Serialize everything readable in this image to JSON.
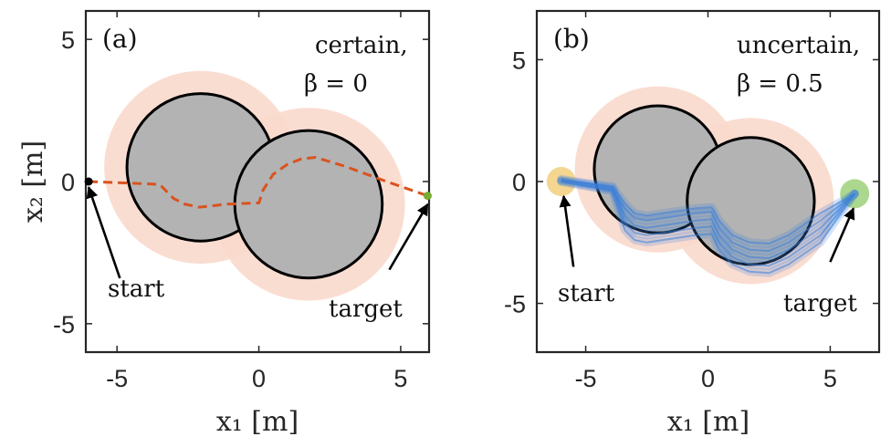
{
  "chart_data": [
    {
      "panel_label": "(a)",
      "type": "line",
      "annotation": {
        "line1": "certain,",
        "line2": "β = 0"
      },
      "xlabel": "x₁ [m]",
      "ylabel": "x₂ [m]",
      "xlim": [
        -6.1,
        6
      ],
      "ylim": [
        -6,
        6
      ],
      "xticks": [
        -5,
        0,
        5
      ],
      "xtick_labels": [
        "-5",
        "0",
        "5"
      ],
      "yticks": [
        -5,
        0,
        5
      ],
      "ytick_labels": [
        "-5",
        "0",
        "5"
      ],
      "obstacles": [
        {
          "name": "obstacle-1",
          "cx": -2.05,
          "cy": 0.5,
          "r": 2.6,
          "margin_r": 3.4
        },
        {
          "name": "obstacle-2",
          "cx": 1.75,
          "cy": -0.8,
          "r": 2.6,
          "margin_r": 3.4
        }
      ],
      "start": {
        "label": "start",
        "x": -6.0,
        "y": 0.0
      },
      "target": {
        "label": "target",
        "x": 5.95,
        "y": -0.5
      },
      "trajectory": {
        "style": "dashed",
        "color": "#d9531e",
        "x": [
          -6.0,
          -3.5,
          -3.3,
          -3.0,
          -2.6,
          -2.1,
          -1.6,
          -1.2,
          0.0,
          0.15,
          0.5,
          1.0,
          1.5,
          2.0,
          3.0,
          4.5,
          5.95
        ],
        "y": [
          0.0,
          -0.1,
          -0.3,
          -0.6,
          -0.8,
          -0.9,
          -0.85,
          -0.8,
          -0.75,
          -0.3,
          0.25,
          0.6,
          0.8,
          0.85,
          0.55,
          0.0,
          -0.5
        ]
      },
      "arrows": [
        {
          "label": "start",
          "from": [
            -4.9,
            -3.4
          ],
          "to": [
            -6.0,
            -0.2
          ]
        },
        {
          "label": "target",
          "from": [
            4.6,
            -3.1
          ],
          "to": [
            5.95,
            -0.8
          ]
        }
      ]
    },
    {
      "panel_label": "(b)",
      "type": "line",
      "annotation": {
        "line1": "uncertain,",
        "line2": "β = 0.5"
      },
      "xlabel": "x₁ [m]",
      "ylabel": "",
      "xlim": [
        -7,
        7
      ],
      "ylim": [
        -7,
        7
      ],
      "xticks": [
        -5,
        0,
        5
      ],
      "xtick_labels": [
        "-5",
        "0",
        "5"
      ],
      "yticks": [
        -5,
        0,
        5
      ],
      "ytick_labels": [
        "-5",
        "0",
        "5"
      ],
      "obstacles": [
        {
          "name": "obstacle-1",
          "cx": -2.05,
          "cy": 0.5,
          "r": 2.6,
          "margin_r": 3.4
        },
        {
          "name": "obstacle-2",
          "cx": 1.75,
          "cy": -0.8,
          "r": 2.6,
          "margin_r": 3.4
        }
      ],
      "start": {
        "label": "start",
        "x": -6.0,
        "y": 0.0,
        "color": "#f2cf7c"
      },
      "target": {
        "label": "target",
        "x": 6.0,
        "y": -0.5,
        "color": "#9ed07a"
      },
      "trajectory_color": "#3a7fd9",
      "trajectories": [
        {
          "x": [
            -6.0,
            -3.9,
            -3.4,
            -3.0,
            -2.5,
            -0.5,
            0.15,
            0.45,
            1.0,
            1.7,
            2.5,
            3.3,
            4.6,
            6.0
          ],
          "y": [
            0.0,
            -0.35,
            -1.1,
            -1.5,
            -1.6,
            -1.3,
            -1.25,
            -1.9,
            -2.5,
            -2.8,
            -2.85,
            -2.5,
            -1.6,
            -0.5
          ]
        },
        {
          "x": [
            -6.0,
            -3.9,
            -3.4,
            -3.0,
            -2.5,
            -0.5,
            0.15,
            0.45,
            1.0,
            1.7,
            2.5,
            3.3,
            4.6,
            6.0
          ],
          "y": [
            0.05,
            -0.3,
            -1.4,
            -1.8,
            -1.9,
            -1.6,
            -1.55,
            -2.2,
            -2.8,
            -3.1,
            -3.15,
            -2.8,
            -1.9,
            -0.5
          ]
        },
        {
          "x": [
            -6.0,
            -3.9,
            -3.4,
            -3.0,
            -2.5,
            -0.5,
            0.15,
            0.45,
            1.0,
            1.7,
            2.5,
            3.3,
            4.6,
            6.0
          ],
          "y": [
            0.1,
            -0.25,
            -1.7,
            -2.1,
            -2.2,
            -1.9,
            -1.85,
            -2.5,
            -3.1,
            -3.4,
            -3.45,
            -3.1,
            -2.2,
            -0.5
          ]
        },
        {
          "x": [
            -6.0,
            -3.9,
            -3.4,
            -3.0,
            -2.5,
            -0.5,
            0.15,
            0.45,
            1.0,
            1.7,
            2.5,
            3.3,
            4.6,
            6.0
          ],
          "y": [
            0.0,
            -0.4,
            -2.0,
            -2.4,
            -2.5,
            -2.2,
            -2.15,
            -2.8,
            -3.4,
            -3.7,
            -3.75,
            -3.4,
            -2.5,
            -0.5
          ]
        },
        {
          "x": [
            -6.0,
            -3.9,
            -3.4,
            -3.0,
            -2.5,
            -0.5,
            0.15,
            0.45,
            1.0,
            1.7,
            2.5,
            3.3,
            4.6,
            6.0
          ],
          "y": [
            0.05,
            -0.2,
            -0.9,
            -1.3,
            -1.4,
            -1.1,
            -1.05,
            -1.6,
            -2.2,
            -2.5,
            -2.55,
            -2.2,
            -1.3,
            -0.5
          ]
        }
      ],
      "arrows": [
        {
          "label": "start",
          "from": [
            -5.5,
            -3.5
          ],
          "to": [
            -5.9,
            -0.6
          ]
        },
        {
          "label": "target",
          "from": [
            5.0,
            -3.3
          ],
          "to": [
            5.95,
            -1.1
          ]
        }
      ]
    }
  ]
}
